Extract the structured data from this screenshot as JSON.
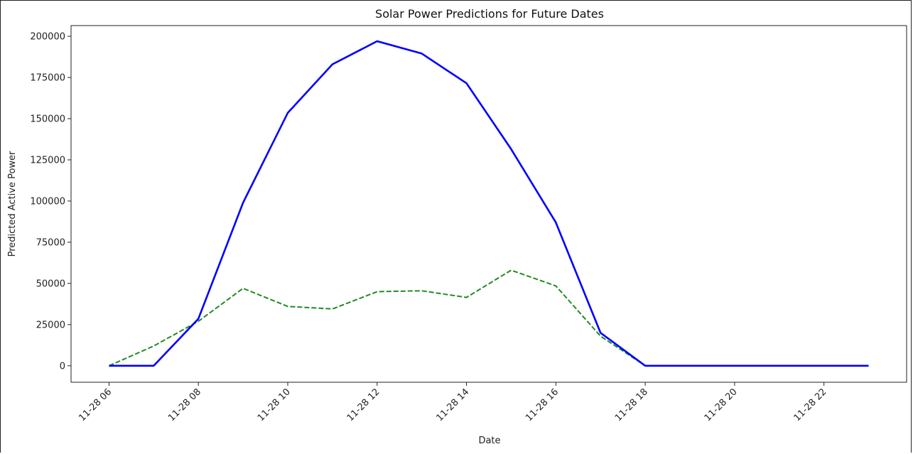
{
  "chart_data": {
    "type": "line",
    "title": "Solar Power Predictions for Future Dates",
    "xlabel": "Date",
    "ylabel": "Predicted Active Power",
    "x": [
      "2023-11-28 06:00",
      "2023-11-28 07:00",
      "2023-11-28 08:00",
      "2023-11-28 09:00",
      "2023-11-28 10:00",
      "2023-11-28 11:00",
      "2023-11-28 12:00",
      "2023-11-28 13:00",
      "2023-11-28 14:00",
      "2023-11-28 15:00",
      "2023-11-28 16:00",
      "2023-11-28 17:00",
      "2023-11-28 18:00",
      "2023-11-28 19:00",
      "2023-11-28 20:00",
      "2023-11-28 21:00",
      "2023-11-28 22:00",
      "2023-11-28 23:00"
    ],
    "x_tick_labels": [
      "11-28 06",
      "11-28 08",
      "11-28 10",
      "11-28 12",
      "11-28 14",
      "11-28 16",
      "11-28 18",
      "11-28 20",
      "11-28 22"
    ],
    "x_tick_values": [
      "2023-11-28 06:00",
      "2023-11-28 08:00",
      "2023-11-28 10:00",
      "2023-11-28 12:00",
      "2023-11-28 14:00",
      "2023-11-28 16:00",
      "2023-11-28 18:00",
      "2023-11-28 20:00",
      "2023-11-28 22:00"
    ],
    "y_ticks": [
      0,
      25000,
      50000,
      75000,
      100000,
      125000,
      150000,
      175000,
      200000
    ],
    "ylim": [
      -10000,
      206500
    ],
    "xlim": [
      "2023-11-28 05:09",
      "2023-11-28 23:51"
    ],
    "grid": false,
    "series": [
      {
        "color": "#0000ff",
        "style": "solid",
        "values": [
          0,
          0,
          28500,
          99000,
          153500,
          183000,
          197000,
          189500,
          171500,
          131500,
          87000,
          20000,
          0,
          0,
          0,
          0,
          0,
          0
        ]
      },
      {
        "color": "#228b22",
        "style": "dashed",
        "values": [
          0,
          12000,
          27000,
          47000,
          36000,
          34500,
          45000,
          45500,
          41500,
          58000,
          48500,
          18000,
          0,
          0,
          0,
          0,
          0,
          0
        ]
      }
    ]
  }
}
